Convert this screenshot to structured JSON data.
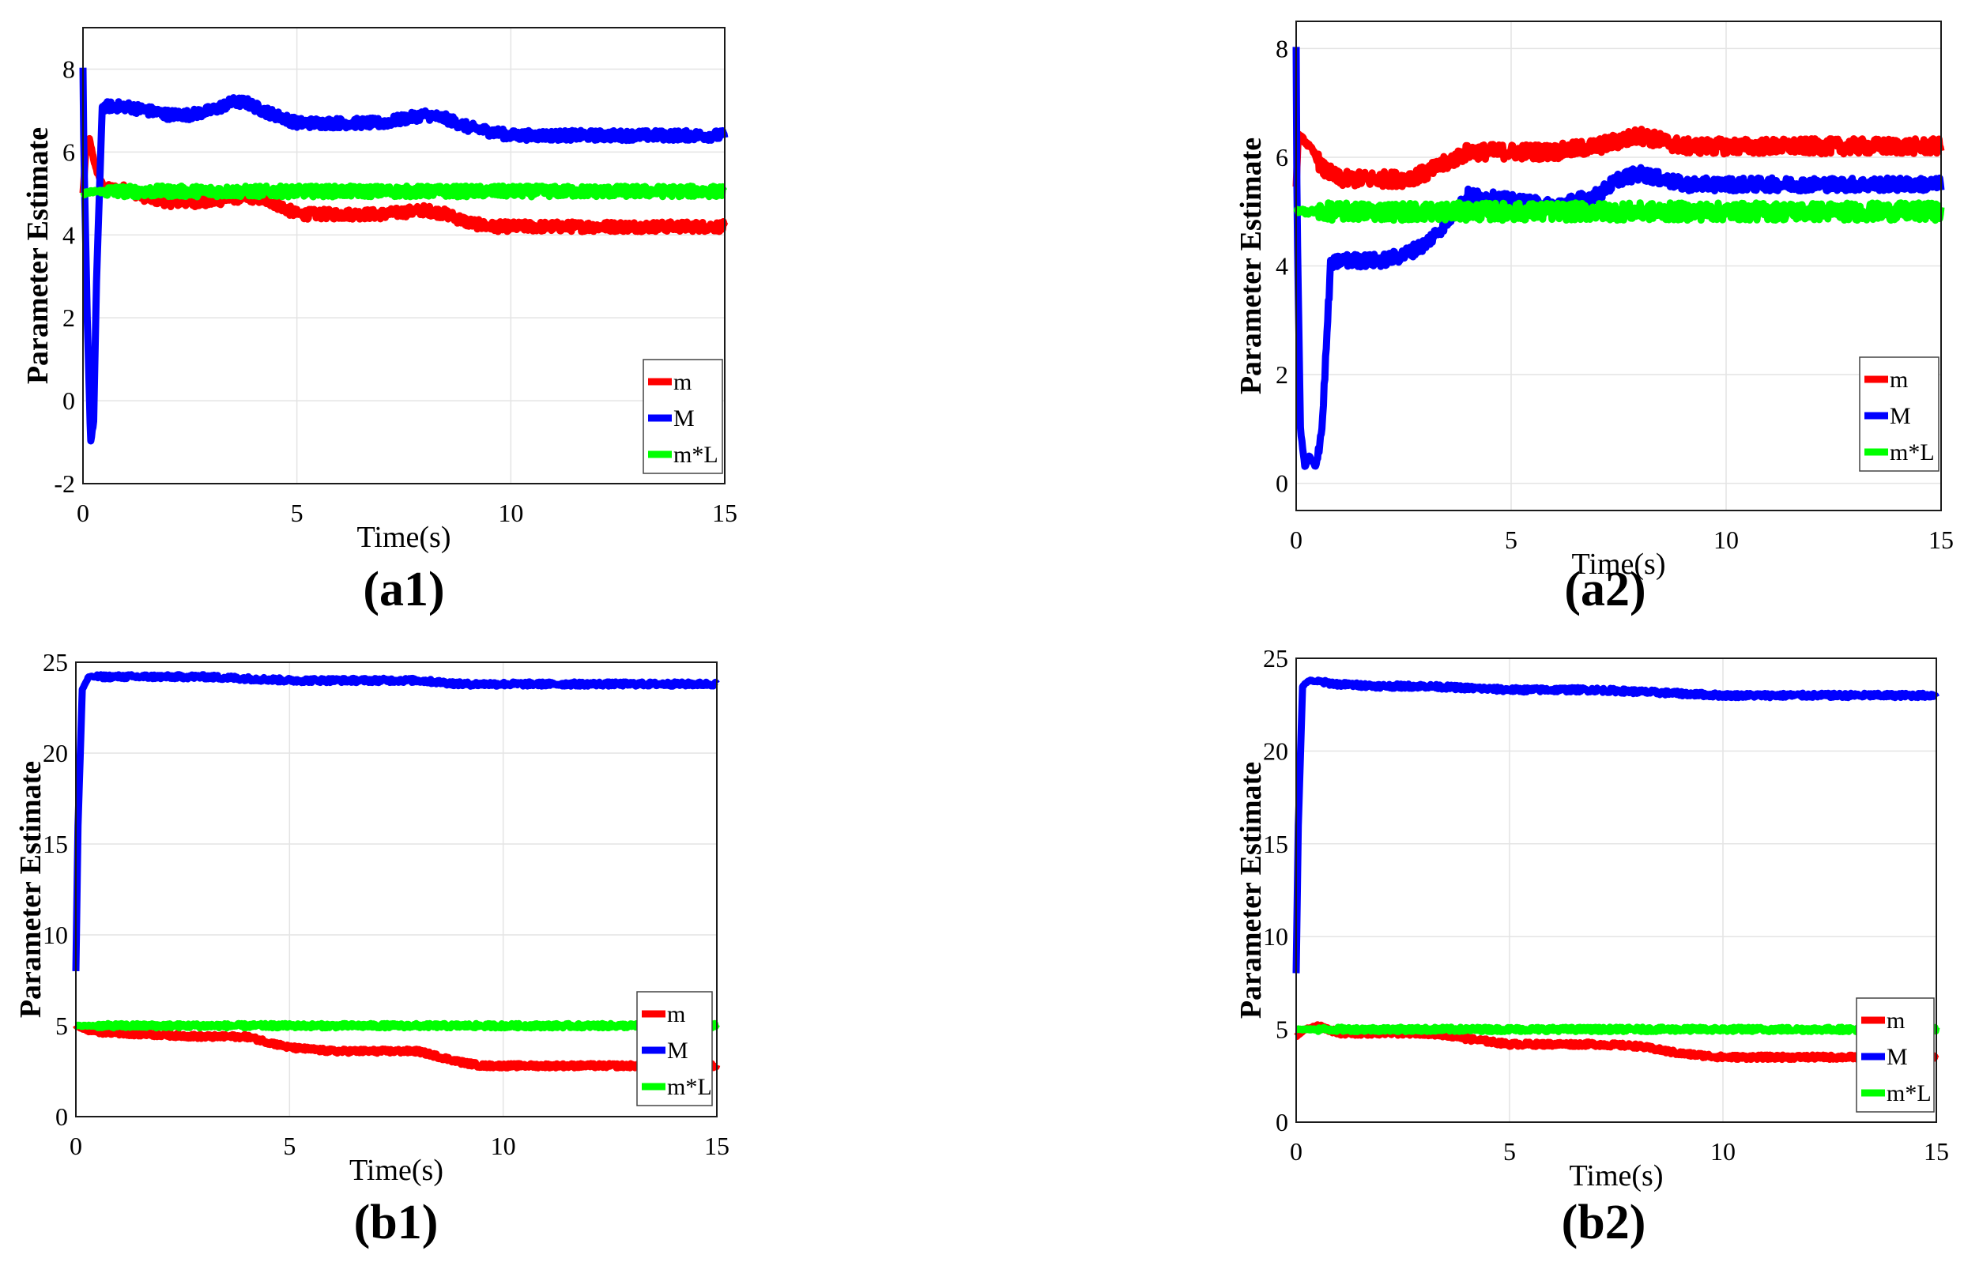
{
  "chart_data": [
    {
      "type": "line",
      "panel": "(a1)",
      "xlabel": "Time(s)",
      "ylabel": "Parameter Estimate",
      "xlim": [
        0,
        15
      ],
      "ylim": [
        -2,
        9
      ],
      "xticks": [
        0,
        5,
        10,
        15
      ],
      "yticks": [
        -2,
        0,
        2,
        4,
        6,
        8
      ],
      "grid": true,
      "legend_position": "bottom-right",
      "series": [
        {
          "name": "m",
          "color": "#ff0000",
          "noise": 0.12,
          "x": [
            0,
            0.08,
            0.15,
            0.3,
            0.5,
            1,
            1.5,
            2,
            2.5,
            3,
            3.5,
            4,
            4.4,
            5,
            6,
            7,
            8,
            8.5,
            9,
            9.5,
            10,
            11,
            12,
            13,
            14,
            15
          ],
          "y": [
            5.0,
            6.2,
            6.3,
            5.6,
            5.1,
            5.1,
            4.9,
            4.8,
            4.8,
            4.8,
            4.9,
            4.9,
            4.8,
            4.5,
            4.5,
            4.5,
            4.6,
            4.5,
            4.3,
            4.2,
            4.2,
            4.2,
            4.2,
            4.2,
            4.2,
            4.2
          ]
        },
        {
          "name": "M",
          "color": "#0000ff",
          "noise": 0.12,
          "x": [
            0,
            0.02,
            0.1,
            0.18,
            0.25,
            0.32,
            0.45,
            1,
            2,
            2.5,
            3,
            3.5,
            3.8,
            4.2,
            5,
            6,
            7,
            8,
            8.5,
            9,
            9.5,
            10,
            11,
            12,
            13,
            14,
            15
          ],
          "y": [
            8.0,
            6.0,
            2.0,
            -1.0,
            -0.5,
            3.0,
            7.1,
            7.1,
            6.9,
            6.9,
            7.0,
            7.2,
            7.2,
            7.0,
            6.7,
            6.7,
            6.7,
            6.9,
            6.8,
            6.6,
            6.5,
            6.4,
            6.4,
            6.4,
            6.4,
            6.4,
            6.4
          ]
        },
        {
          "name": "m*L",
          "color": "#00ff00",
          "noise": 0.13,
          "x": [
            0,
            0.3,
            1,
            3,
            5,
            8,
            10,
            12,
            15
          ],
          "y": [
            5.0,
            5.05,
            5.05,
            5.05,
            5.05,
            5.05,
            5.05,
            5.05,
            5.05
          ]
        }
      ]
    },
    {
      "type": "line",
      "panel": "(a2)",
      "xlabel": "Time(s)",
      "ylabel": "Parameter Estimate",
      "xlim": [
        0,
        15
      ],
      "ylim": [
        -0.5,
        8.5
      ],
      "xticks": [
        0,
        5,
        10,
        15
      ],
      "yticks": [
        0,
        2,
        4,
        6,
        8
      ],
      "grid": true,
      "legend_position": "bottom-right",
      "series": [
        {
          "name": "m",
          "color": "#ff0000",
          "noise": 0.14,
          "x": [
            0,
            0.05,
            0.2,
            0.4,
            0.6,
            0.8,
            1,
            2,
            2.5,
            3,
            3.5,
            4,
            5,
            6,
            7,
            7.5,
            8,
            8.5,
            9,
            10,
            11,
            12,
            13,
            14,
            15
          ],
          "y": [
            5.5,
            6.4,
            6.3,
            6.1,
            5.8,
            5.7,
            5.6,
            5.6,
            5.6,
            5.7,
            5.9,
            6.1,
            6.1,
            6.1,
            6.2,
            6.3,
            6.4,
            6.3,
            6.2,
            6.2,
            6.2,
            6.2,
            6.2,
            6.2,
            6.2
          ]
        },
        {
          "name": "M",
          "color": "#0000ff",
          "noise": 0.12,
          "x": [
            0,
            0.02,
            0.1,
            0.2,
            0.3,
            0.45,
            0.6,
            0.8,
            1,
            1.5,
            2,
            2.5,
            3,
            3.5,
            4,
            5,
            6,
            7,
            7.5,
            8,
            8.5,
            9,
            10,
            11,
            12,
            13,
            14,
            15
          ],
          "y": [
            8.0,
            5.0,
            1.0,
            0.3,
            0.5,
            0.3,
            1.0,
            4.0,
            4.1,
            4.1,
            4.1,
            4.2,
            4.4,
            4.8,
            5.3,
            5.2,
            5.1,
            5.3,
            5.6,
            5.7,
            5.6,
            5.5,
            5.5,
            5.5,
            5.5,
            5.5,
            5.5,
            5.5
          ]
        },
        {
          "name": "m*L",
          "color": "#00ff00",
          "noise": 0.16,
          "x": [
            0,
            1,
            3,
            5,
            8,
            10,
            12,
            15
          ],
          "y": [
            5.0,
            5.0,
            5.0,
            5.0,
            5.0,
            5.0,
            5.0,
            5.0
          ]
        }
      ]
    },
    {
      "type": "line",
      "panel": "(b1)",
      "xlabel": "Time(s)",
      "ylabel": "Parameter Estimate",
      "xlim": [
        0,
        15
      ],
      "ylim": [
        0,
        25
      ],
      "xticks": [
        0,
        5,
        10,
        15
      ],
      "yticks": [
        0,
        5,
        10,
        15,
        20,
        25
      ],
      "grid": true,
      "legend_position": "bottom-right",
      "series": [
        {
          "name": "m",
          "color": "#ff0000",
          "noise": 0.12,
          "x": [
            0,
            0.3,
            1,
            2,
            3,
            4,
            4.5,
            5,
            6,
            7,
            8,
            8.5,
            9,
            9.5,
            10,
            11,
            12,
            13,
            14,
            15
          ],
          "y": [
            5.0,
            4.7,
            4.6,
            4.5,
            4.4,
            4.4,
            4.1,
            3.8,
            3.6,
            3.6,
            3.6,
            3.3,
            3.0,
            2.8,
            2.8,
            2.8,
            2.8,
            2.8,
            2.8,
            2.8
          ]
        },
        {
          "name": "M",
          "color": "#0000ff",
          "noise": 0.12,
          "x": [
            0,
            0.05,
            0.15,
            0.3,
            1,
            2,
            3,
            4,
            5,
            6,
            7,
            8,
            9,
            10,
            11,
            12,
            13,
            14,
            15
          ],
          "y": [
            8.0,
            16.0,
            23.5,
            24.2,
            24.2,
            24.2,
            24.2,
            24.1,
            24.0,
            24.0,
            24.0,
            24.0,
            23.8,
            23.8,
            23.8,
            23.8,
            23.8,
            23.8,
            23.8
          ]
        },
        {
          "name": "m*L",
          "color": "#00ff00",
          "noise": 0.12,
          "x": [
            0,
            1,
            3,
            5,
            8,
            10,
            12,
            15
          ],
          "y": [
            5.0,
            5.0,
            5.0,
            5.0,
            5.0,
            5.0,
            5.0,
            5.0
          ]
        }
      ]
    },
    {
      "type": "line",
      "panel": "(b2)",
      "xlabel": "Time(s)",
      "ylabel": "Parameter Estimate",
      "xlim": [
        0,
        15
      ],
      "ylim": [
        0,
        25
      ],
      "xticks": [
        0,
        5,
        10,
        15
      ],
      "yticks": [
        0,
        5,
        10,
        15,
        20,
        25
      ],
      "grid": true,
      "legend_position": "bottom-right",
      "series": [
        {
          "name": "m",
          "color": "#ff0000",
          "noise": 0.12,
          "x": [
            0,
            0.2,
            0.5,
            1,
            2,
            3,
            3.5,
            4,
            5,
            6,
            7,
            8,
            8.5,
            9,
            9.5,
            10,
            11,
            12,
            13,
            14,
            15
          ],
          "y": [
            4.6,
            5.0,
            5.2,
            4.8,
            4.8,
            4.8,
            4.7,
            4.5,
            4.2,
            4.2,
            4.2,
            4.1,
            3.9,
            3.7,
            3.6,
            3.5,
            3.5,
            3.5,
            3.5,
            3.5,
            3.5
          ]
        },
        {
          "name": "M",
          "color": "#0000ff",
          "noise": 0.12,
          "x": [
            0,
            0.05,
            0.15,
            0.3,
            1,
            2,
            3,
            4,
            5,
            6,
            7,
            8,
            9,
            10,
            11,
            12,
            13,
            14,
            15
          ],
          "y": [
            8.0,
            16.0,
            23.5,
            23.8,
            23.6,
            23.5,
            23.5,
            23.4,
            23.3,
            23.3,
            23.3,
            23.2,
            23.1,
            23.0,
            23.0,
            23.0,
            23.0,
            23.0,
            23.0
          ]
        },
        {
          "name": "m*L",
          "color": "#00ff00",
          "noise": 0.12,
          "x": [
            0,
            1,
            3,
            5,
            8,
            10,
            12,
            15
          ],
          "y": [
            5.0,
            5.0,
            5.0,
            5.0,
            5.0,
            5.0,
            5.0,
            5.0
          ]
        }
      ]
    }
  ]
}
